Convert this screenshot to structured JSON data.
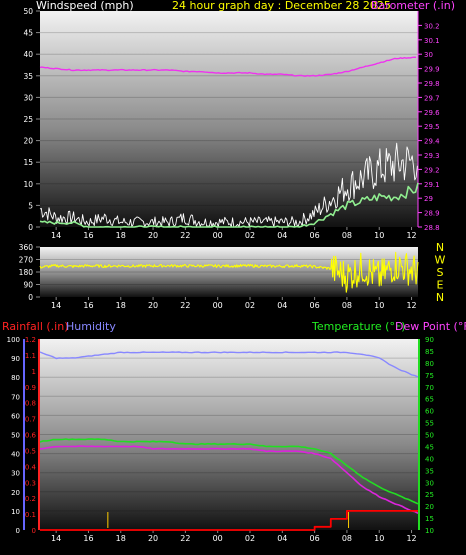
{
  "header": {
    "wind_title": "Windspeed (mph)",
    "graph_title": "24 hour graph day : December 28 2025",
    "baro_title": "Barometer (.in)"
  },
  "colors": {
    "wind_title": "#ffffff",
    "graph_title": "#ffff00",
    "baro_title": "#ff44ff",
    "wind_avg": "#ffffff",
    "wind_gust": "#90ee90",
    "barometer": "#ee33ee",
    "direction": "#ffff00",
    "rainfall": "#ff0000",
    "humidity": "#8888ff",
    "temperature": "#22dd22",
    "dewpoint": "#dd22dd",
    "background": "#000000"
  },
  "x_ticks": [
    "14",
    "16",
    "18",
    "20",
    "22",
    "00",
    "02",
    "04",
    "06",
    "08",
    "10",
    "12"
  ],
  "chart_data": [
    {
      "type": "line",
      "name": "wind-baro",
      "left_ylim": [
        0,
        50
      ],
      "left_ticks": [
        "0",
        "5",
        "10",
        "15",
        "20",
        "25",
        "30",
        "35",
        "40",
        "45",
        "50"
      ],
      "right_ylim": [
        28.8,
        30.3
      ],
      "right_ticks": [
        "28.8",
        "28.9",
        "29",
        "29.1",
        "29.2",
        "29.3",
        "29.4",
        "29.5",
        "29.6",
        "29.7",
        "29.8",
        "29.9",
        "30",
        "30.1",
        "30.2"
      ],
      "x_hours": [
        13,
        14,
        15,
        16,
        17,
        18,
        19,
        20,
        21,
        22,
        23,
        24,
        25,
        26,
        27,
        28,
        29,
        30,
        31,
        32,
        33,
        34,
        35,
        36.4
      ],
      "series": [
        {
          "name": "Windspeed",
          "axis": "left",
          "values": [
            4,
            2,
            2,
            1,
            2,
            1,
            1,
            1,
            1,
            2,
            1,
            1,
            1,
            1,
            1,
            1,
            1,
            3,
            6,
            9,
            11,
            13,
            14,
            15
          ]
        },
        {
          "name": "Wind gust",
          "axis": "left",
          "values": [
            1,
            1,
            1,
            0,
            0,
            0,
            0,
            0,
            0,
            0,
            0,
            0,
            0,
            0,
            0,
            0,
            0,
            1,
            3,
            5,
            6,
            7,
            7,
            9
          ]
        },
        {
          "name": "Barometer",
          "axis": "right",
          "values": [
            29.91,
            29.9,
            29.89,
            29.89,
            29.89,
            29.89,
            29.89,
            29.89,
            29.89,
            29.88,
            29.88,
            29.87,
            29.87,
            29.87,
            29.86,
            29.86,
            29.85,
            29.85,
            29.86,
            29.88,
            29.91,
            29.94,
            29.97,
            29.98
          ]
        }
      ]
    },
    {
      "type": "line",
      "name": "wind-direction",
      "ylim": [
        0,
        360
      ],
      "left_ticks": [
        "0",
        "90",
        "180",
        "270",
        "360"
      ],
      "right_labels": [
        "N",
        "W",
        "S",
        "E",
        "N"
      ],
      "x_hours": [
        13,
        14,
        15,
        16,
        17,
        18,
        19,
        20,
        21,
        22,
        23,
        24,
        25,
        26,
        27,
        28,
        29,
        30,
        31,
        32,
        33,
        34,
        35,
        36.4
      ],
      "series": [
        {
          "name": "Wind direction",
          "values": [
            215,
            225,
            220,
            225,
            222,
            225,
            222,
            225,
            225,
            224,
            224,
            223,
            224,
            225,
            222,
            222,
            225,
            218,
            205,
            150,
            210,
            140,
            230,
            185
          ]
        }
      ]
    },
    {
      "type": "line",
      "name": "rain-humidity-temp",
      "legend": {
        "rainfall": "Rainfall (.in)",
        "humidity": "Humidity",
        "temperature": "Temperature (°F)",
        "dewpoint": "Dew Point (°F)"
      },
      "humidity_ylim": [
        0,
        100
      ],
      "humidity_ticks": [
        "0",
        "10",
        "20",
        "30",
        "40",
        "50",
        "60",
        "70",
        "80",
        "90",
        "100"
      ],
      "rain_ylim": [
        0,
        1.2
      ],
      "rain_ticks": [
        "0",
        "0.1",
        "0.2",
        "0.3",
        "0.4",
        "0.5",
        "0.6",
        "0.7",
        "0.8",
        "0.9",
        "1",
        "1.1",
        "1.2"
      ],
      "temp_ylim": [
        10,
        90
      ],
      "temp_ticks": [
        "10",
        "15",
        "20",
        "25",
        "30",
        "35",
        "40",
        "45",
        "50",
        "55",
        "60",
        "65",
        "70",
        "75",
        "80",
        "85",
        "90"
      ],
      "x_hours": [
        13,
        14,
        15,
        16,
        17,
        18,
        19,
        20,
        21,
        22,
        23,
        24,
        25,
        26,
        27,
        28,
        29,
        30,
        31,
        32,
        33,
        34,
        35,
        36.4
      ],
      "series": [
        {
          "name": "Humidity",
          "axis": "humidity",
          "values": [
            93,
            90,
            90,
            91,
            92,
            93,
            93,
            93,
            93,
            93,
            93,
            93,
            93,
            93,
            93,
            93,
            93,
            93,
            93,
            93,
            92,
            90,
            85,
            80
          ]
        },
        {
          "name": "Temperature",
          "axis": "temp",
          "values": [
            47,
            48,
            48,
            48,
            48,
            47,
            47,
            47,
            47,
            46,
            46,
            46,
            46,
            46,
            45,
            45,
            45,
            44,
            42,
            37,
            32,
            28,
            25,
            21
          ]
        },
        {
          "name": "Dew Point",
          "axis": "temp",
          "values": [
            44,
            45,
            45,
            45,
            45,
            45,
            45,
            44,
            44,
            44,
            44,
            44,
            44,
            44,
            43,
            43,
            43,
            42,
            40,
            34,
            28,
            24,
            21,
            17
          ]
        },
        {
          "name": "Rainfall",
          "axis": "rain",
          "values": [
            0,
            0,
            0,
            0,
            0,
            0,
            0,
            0,
            0,
            0,
            0,
            0,
            0,
            0,
            0,
            0,
            0,
            0.02,
            0.07,
            0.12,
            0.12,
            0.12,
            0.12,
            0.12
          ]
        }
      ]
    }
  ]
}
